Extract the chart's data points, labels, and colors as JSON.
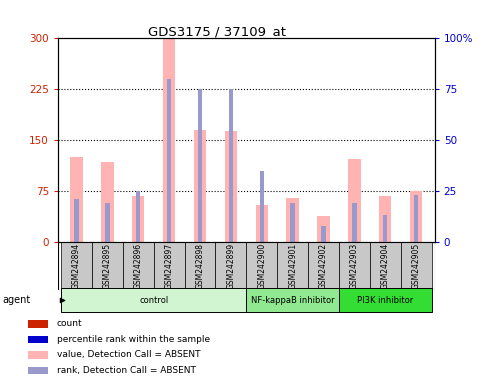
{
  "title": "GDS3175 / 37109_at",
  "samples": [
    "GSM242894",
    "GSM242895",
    "GSM242896",
    "GSM242897",
    "GSM242898",
    "GSM242899",
    "GSM242900",
    "GSM242901",
    "GSM242902",
    "GSM242903",
    "GSM242904",
    "GSM242905"
  ],
  "absent_values": [
    125,
    118,
    68,
    300,
    165,
    163,
    55,
    65,
    38,
    122,
    68,
    75
  ],
  "absent_rank_values": [
    21,
    19,
    25,
    80,
    75,
    75,
    35,
    19,
    8,
    19,
    13,
    23
  ],
  "ylim_left": [
    0,
    300
  ],
  "ylim_right": [
    0,
    100
  ],
  "yticks_left": [
    0,
    75,
    150,
    225,
    300
  ],
  "yticks_right": [
    0,
    25,
    50,
    75,
    100
  ],
  "ytick_labels_left": [
    "0",
    "75",
    "150",
    "225",
    "300"
  ],
  "ytick_labels_right": [
    "0",
    "25",
    "50",
    "75",
    "100%"
  ],
  "groups": [
    {
      "label": "control",
      "start": 0,
      "end": 6,
      "color": "#d0f5d0"
    },
    {
      "label": "NF-kappaB inhibitor",
      "start": 6,
      "end": 9,
      "color": "#90e890"
    },
    {
      "label": "PI3K inhibitor",
      "start": 9,
      "end": 12,
      "color": "#33dd33"
    }
  ],
  "absent_color": "#ffb3b3",
  "absent_rank_color": "#9999cc",
  "count_color": "#cc2200",
  "rank_color": "#0000cc",
  "label_bg": "#c8c8c8",
  "plot_bg": "#ffffff"
}
